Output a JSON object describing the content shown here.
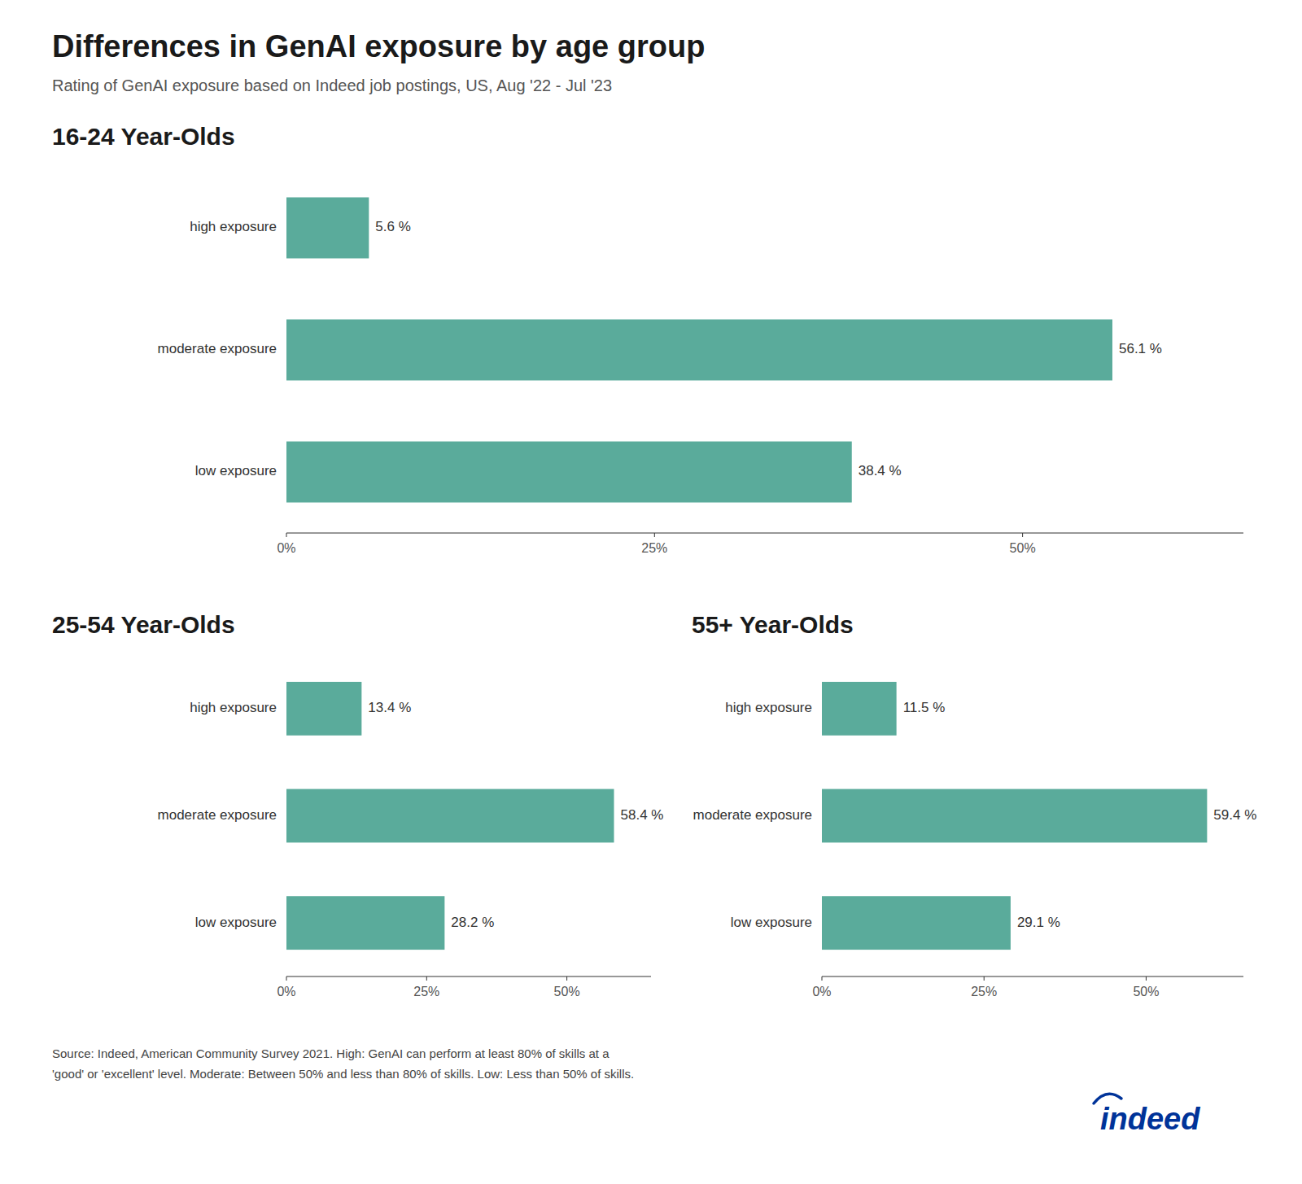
{
  "title": "Differences in GenAI exposure by age group",
  "subtitle": "Rating of GenAI exposure based on Indeed job postings, US, Aug '22 - Jul '23",
  "footer": "Source: Indeed, American Community Survey 2021. High: GenAI can perform at least 80% of skills at a\n'good' or 'excellent' level. Moderate: Between 50% and less than 80% of skills. Low: Less than 50% of skills.",
  "logo": {
    "text": "indeed",
    "color": "#003399"
  },
  "chart_data": [
    {
      "type": "bar",
      "orientation": "horizontal",
      "title": "16-24 Year-Olds",
      "categories": [
        "high exposure",
        "moderate exposure",
        "low exposure"
      ],
      "values": [
        5.6,
        56.1,
        38.4
      ],
      "value_labels": [
        "5.6 %",
        "56.1 %",
        "38.4 %"
      ],
      "color": "#5aab9b",
      "data_labels": true,
      "grid": false,
      "xlim": [
        0,
        65
      ],
      "xticks": [
        {
          "value": 0,
          "label": "0%"
        },
        {
          "value": 25,
          "label": "25%"
        },
        {
          "value": 50,
          "label": "50%"
        }
      ]
    },
    {
      "type": "bar",
      "orientation": "horizontal",
      "title": "25-54 Year-Olds",
      "categories": [
        "high exposure",
        "moderate exposure",
        "low exposure"
      ],
      "values": [
        13.4,
        58.4,
        28.2
      ],
      "value_labels": [
        "13.4 %",
        "58.4 %",
        "28.2 %"
      ],
      "color": "#5aab9b",
      "data_labels": true,
      "grid": false,
      "xlim": [
        0,
        65
      ],
      "xticks": [
        {
          "value": 0,
          "label": "0%"
        },
        {
          "value": 25,
          "label": "25%"
        },
        {
          "value": 50,
          "label": "50%"
        }
      ]
    },
    {
      "type": "bar",
      "orientation": "horizontal",
      "title": "55+ Year-Olds",
      "categories": [
        "high exposure",
        "moderate exposure",
        "low exposure"
      ],
      "values": [
        11.5,
        59.4,
        29.1
      ],
      "value_labels": [
        "11.5 %",
        "59.4 %",
        "29.1 %"
      ],
      "color": "#5aab9b",
      "data_labels": true,
      "grid": false,
      "xlim": [
        0,
        65
      ],
      "xticks": [
        {
          "value": 0,
          "label": "0%"
        },
        {
          "value": 25,
          "label": "25%"
        },
        {
          "value": 50,
          "label": "50%"
        }
      ]
    }
  ]
}
